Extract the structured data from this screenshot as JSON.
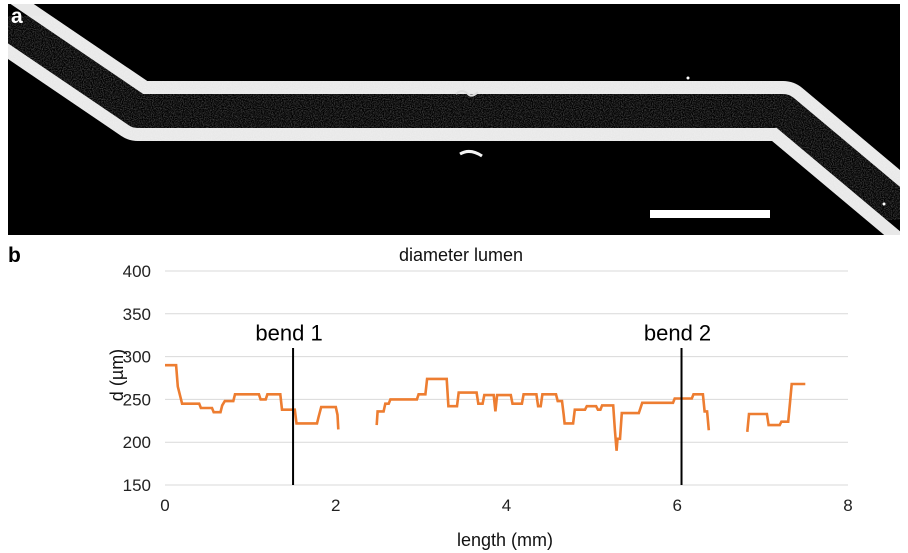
{
  "panel_a": {
    "label": "a",
    "background_color": "#000000",
    "wall_color": "#e8e8e8",
    "scale_bar_color": "#ffffff"
  },
  "chart_data": {
    "type": "line",
    "panel_label": "b",
    "title": "diameter lumen",
    "xlabel": "length (mm)",
    "ylabel": "d (µm)",
    "xlim": [
      0,
      8
    ],
    "ylim": [
      150,
      400
    ],
    "x_ticks": [
      0,
      2,
      4,
      6,
      8
    ],
    "y_ticks": [
      150,
      200,
      250,
      300,
      350,
      400
    ],
    "grid": "horizontal",
    "legend": "none",
    "line_color": "#ed7d31",
    "series": [
      {
        "segments": [
          [
            [
              0.0,
              290
            ],
            [
              0.13,
              290
            ],
            [
              0.15,
              265
            ],
            [
              0.2,
              245
            ],
            [
              0.4,
              245
            ],
            [
              0.42,
              240
            ],
            [
              0.55,
              240
            ],
            [
              0.57,
              235
            ],
            [
              0.65,
              235
            ],
            [
              0.67,
              243
            ],
            [
              0.7,
              248
            ],
            [
              0.8,
              248
            ],
            [
              0.82,
              256
            ],
            [
              1.1,
              256
            ],
            [
              1.12,
              250
            ],
            [
              1.18,
              250
            ],
            [
              1.2,
              256
            ],
            [
              1.35,
              256
            ],
            [
              1.37,
              238
            ],
            [
              1.52,
              238
            ],
            [
              1.54,
              222
            ],
            [
              1.78,
              222
            ],
            [
              1.8,
              230
            ],
            [
              1.83,
              241
            ],
            [
              2.0,
              241
            ],
            [
              2.02,
              232
            ],
            [
              2.03,
              215
            ]
          ],
          [
            [
              2.48,
              220
            ],
            [
              2.49,
              236
            ],
            [
              2.56,
              236
            ],
            [
              2.58,
              245
            ],
            [
              2.62,
              245
            ],
            [
              2.64,
              250
            ],
            [
              2.95,
              250
            ],
            [
              2.97,
              256
            ],
            [
              3.05,
              256
            ],
            [
              3.07,
              274
            ],
            [
              3.3,
              274
            ],
            [
              3.32,
              242
            ],
            [
              3.42,
              242
            ],
            [
              3.44,
              258
            ],
            [
              3.65,
              258
            ],
            [
              3.67,
              245
            ],
            [
              3.72,
              245
            ],
            [
              3.74,
              255
            ],
            [
              3.85,
              255
            ],
            [
              3.87,
              236
            ],
            [
              3.89,
              255
            ],
            [
              4.05,
              255
            ],
            [
              4.07,
              245
            ],
            [
              4.18,
              245
            ],
            [
              4.2,
              256
            ],
            [
              4.35,
              256
            ],
            [
              4.37,
              242
            ],
            [
              4.4,
              242
            ],
            [
              4.42,
              256
            ],
            [
              4.58,
              256
            ],
            [
              4.6,
              248
            ],
            [
              4.65,
              248
            ],
            [
              4.67,
              232
            ],
            [
              4.68,
              222
            ],
            [
              4.78,
              222
            ],
            [
              4.8,
              238
            ],
            [
              4.92,
              238
            ],
            [
              4.94,
              242
            ],
            [
              5.05,
              242
            ],
            [
              5.07,
              238
            ],
            [
              5.1,
              238
            ],
            [
              5.12,
              243
            ],
            [
              5.25,
              243
            ],
            [
              5.27,
              214
            ],
            [
              5.29,
              190
            ],
            [
              5.3,
              204
            ],
            [
              5.33,
              204
            ],
            [
              5.35,
              234
            ],
            [
              5.55,
              234
            ],
            [
              5.57,
              240
            ],
            [
              5.59,
              246
            ],
            [
              5.95,
              246
            ],
            [
              5.97,
              251
            ],
            [
              6.17,
              251
            ],
            [
              6.19,
              256
            ],
            [
              6.3,
              256
            ],
            [
              6.32,
              236
            ],
            [
              6.35,
              236
            ],
            [
              6.37,
              214
            ]
          ],
          [
            [
              6.82,
              212
            ],
            [
              6.84,
              233
            ],
            [
              7.05,
              233
            ],
            [
              7.07,
              220
            ],
            [
              7.2,
              220
            ],
            [
              7.22,
              224
            ],
            [
              7.3,
              224
            ],
            [
              7.32,
              245
            ],
            [
              7.34,
              268
            ],
            [
              7.5,
              268
            ]
          ]
        ]
      }
    ],
    "vertical_lines": [
      {
        "x": 1.5,
        "label": "bend 1"
      },
      {
        "x": 6.05,
        "label": "bend 2"
      }
    ]
  }
}
